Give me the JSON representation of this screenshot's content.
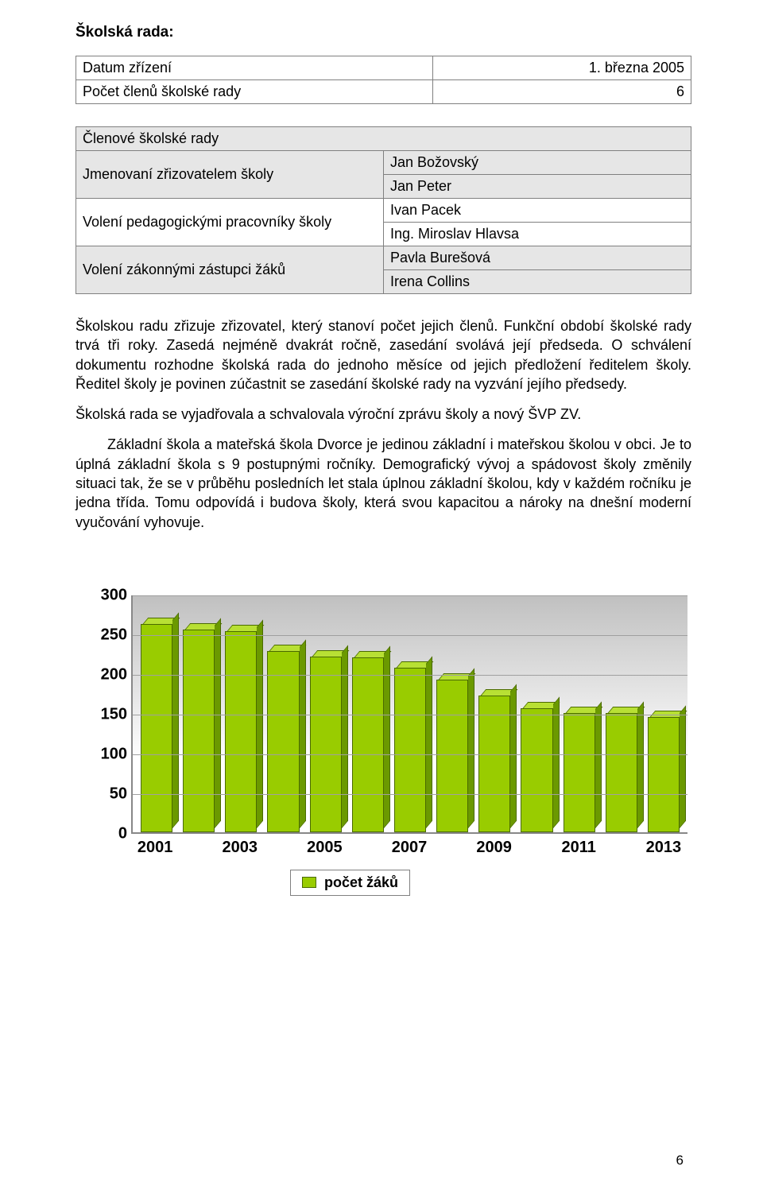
{
  "section_title": "Školská rada:",
  "table1": {
    "rows": [
      [
        "Datum zřízení",
        "1. března 2005"
      ],
      [
        "Počet členů školské rady",
        "6"
      ]
    ]
  },
  "table2": {
    "header_left": "Členové školské rady",
    "rows": [
      {
        "left": "Jmenovaní zřizovatelem školy",
        "right_lines": [
          "Jan Božovský",
          "Jan Peter"
        ],
        "gray": true
      },
      {
        "left": "Volení pedagogickými pracovníky školy",
        "right_lines": [
          "Ivan Pacek",
          "Ing. Miroslav Hlavsa"
        ],
        "gray": false
      },
      {
        "left": "Volení zákonnými zástupci žáků",
        "right_lines": [
          "Pavla Burešová",
          "Irena Collins"
        ],
        "gray": true
      }
    ]
  },
  "paragraphs": [
    "Školskou radu zřizuje zřizovatel, který stanoví počet jejich členů. Funkční období školské rady trvá tři roky. Zasedá nejméně dvakrát ročně, zasedání svolává její předseda. O schválení dokumentu rozhodne školská rada do jednoho měsíce od jejich předložení ředitelem školy. Ředitel školy je povinen zúčastnit se zasedání školské rady na vyzvání jejího předsedy.",
    "Školská rada se vyjadřovala a schvalovala výroční zprávu školy a nový ŠVP ZV.",
    "Základní škola a mateřská škola Dvorce je jedinou základní i mateřskou školou v obci. Je to úplná základní škola s 9 postupnými ročníky. Demografický vývoj a spádovost školy změnily situaci tak, že se v průběhu posledních let stala úplnou základní školou, kdy v každém ročníku je jedna třída. Tomu odpovídá i budova školy, která svou kapacitou a nároky na dnešní moderní vyučování vyhovuje."
  ],
  "chart": {
    "type": "bar",
    "ylim": [
      0,
      300
    ],
    "ytick_step": 50,
    "y_ticks": [
      0,
      50,
      100,
      150,
      200,
      250,
      300
    ],
    "x_labels": [
      "2001",
      "2003",
      "2005",
      "2007",
      "2009",
      "2011",
      "2013"
    ],
    "values": [
      262,
      255,
      253,
      228,
      221,
      220,
      207,
      192,
      172,
      156,
      150,
      150,
      145
    ],
    "bar_color": "#99cc00",
    "bar_top_color": "#b8e034",
    "bar_side_color": "#6b9900",
    "grid_color": "#a0a0a0",
    "legend_label": "počet žáků"
  },
  "page_number": "6"
}
